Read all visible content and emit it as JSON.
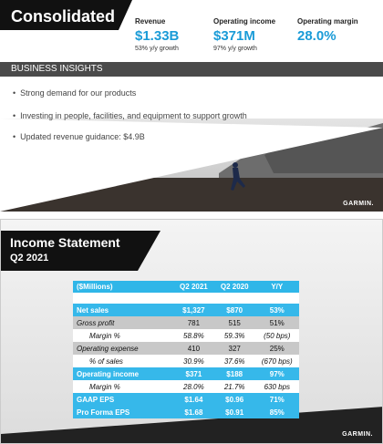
{
  "slide1": {
    "title": "Consolidated",
    "metrics": [
      {
        "label": "Revenue",
        "value": "$1.33B",
        "sub": "53% y/y growth"
      },
      {
        "label": "Operating income",
        "value": "$371M",
        "sub": "97% y/y growth"
      },
      {
        "label": "Operating margin",
        "value": "28.0%"
      }
    ],
    "section": "BUSINESS INSIGHTS",
    "bullets": [
      "Strong demand for our products",
      "Investing in people, facilities, and equipment to support growth",
      "Updated revenue guidance:  $4.9B"
    ],
    "logo": "GARMIN."
  },
  "slide2": {
    "title": "Income Statement",
    "subtitle": "Q2 2021",
    "logo": "GARMIN.",
    "table": {
      "header": [
        "($Millions)",
        "Q2 2021",
        "Q2 2020",
        "Y/Y"
      ],
      "rows": [
        [
          "Net sales",
          "$1,327",
          "$870",
          "53%"
        ],
        [
          "Gross profit",
          "781",
          "515",
          "51%"
        ],
        [
          "Margin %",
          "58.8%",
          "59.3%",
          "(50 bps)"
        ],
        [
          "Operating expense",
          "410",
          "327",
          "25%"
        ],
        [
          "% of sales",
          "30.9%",
          "37.6%",
          "(670 bps)"
        ],
        [
          "Operating income",
          "$371",
          "$188",
          "97%"
        ],
        [
          "Margin %",
          "28.0%",
          "21.7%",
          "630 bps"
        ],
        [
          "GAAP EPS",
          "$1.64",
          "$0.96",
          "71%"
        ],
        [
          "Pro Forma EPS",
          "$1.68",
          "$0.91",
          "85%"
        ]
      ]
    }
  }
}
